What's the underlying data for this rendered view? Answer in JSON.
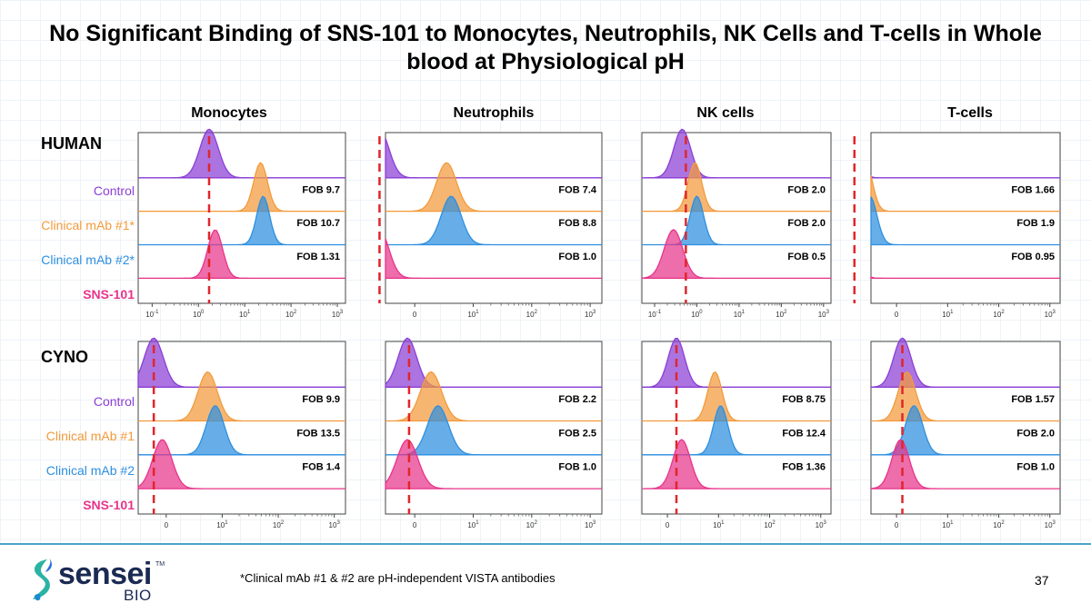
{
  "title": "No Significant Binding of SNS-101 to Monocytes, Neutrophils, NK Cells and T-cells in Whole blood at Physiological pH",
  "colors": {
    "control": "#8a3fd6",
    "clinical1": "#f39a3b",
    "clinical2": "#2d8fe0",
    "sns": "#e8348a",
    "dashed_line": "#e0262b",
    "footer_rule": "#4aa3c8",
    "brand_navy": "#1b2a52"
  },
  "column_headers": [
    "Monocytes",
    "Neutrophils",
    "NK cells",
    "T-cells"
  ],
  "species": {
    "human": "HUMAN",
    "cyno": "CYNO"
  },
  "row_labels": {
    "human": [
      "Control",
      "Clinical mAb #1*",
      "Clinical mAb #2*",
      "SNS-101"
    ],
    "cyno": [
      "Control",
      "Clinical mAb #1",
      "Clinical mAb #2",
      "SNS-101"
    ]
  },
  "footnote": "*Clinical mAb #1 & #2 are pH-independent VISTA antibodies",
  "page_number": "37",
  "logo": {
    "name": "sensei",
    "tm": "TM",
    "sub": "BIO"
  },
  "chart_data": [
    {
      "type": "area",
      "panel": "HUMAN Monocytes",
      "x_scale": "log",
      "xlim": [
        0.05,
        1500
      ],
      "x_ticks": [
        {
          "base": "10",
          "exp": "-1",
          "value": 0.1
        },
        {
          "base": "10",
          "exp": "0",
          "value": 1
        },
        {
          "base": "10",
          "exp": "1",
          "value": 10
        },
        {
          "base": "10",
          "exp": "2",
          "value": 100
        },
        {
          "base": "10",
          "exp": "3",
          "value": 1000
        }
      ],
      "reference_line_x": 1.7,
      "series": [
        {
          "name": "Control",
          "peak": 1.7,
          "spread": 0.2
        },
        {
          "name": "Clinical mAb #1*",
          "peak": 22,
          "spread": 0.15,
          "fob": "FOB 9.7"
        },
        {
          "name": "Clinical mAb #2*",
          "peak": 25,
          "spread": 0.14,
          "fob": "FOB 10.7"
        },
        {
          "name": "SNS-101",
          "peak": 2.3,
          "spread": 0.16,
          "fob": "FOB 1.31"
        }
      ]
    },
    {
      "type": "area",
      "panel": "HUMAN Neutrophils",
      "x_scale": "biexponential",
      "xlim": [
        -0.5,
        3.2
      ],
      "x_ticks": [
        {
          "base": "0",
          "exp": "",
          "value": 0
        },
        {
          "base": "10",
          "exp": "1",
          "value": 10
        },
        {
          "base": "10",
          "exp": "2",
          "value": 100
        },
        {
          "base": "10",
          "exp": "3",
          "value": 1000
        }
      ],
      "reference_line_x": 0.25,
      "series": [
        {
          "name": "Control",
          "peak": 0.25,
          "spread": 0.16
        },
        {
          "name": "Clinical mAb #1*",
          "peak": 3.5,
          "spread": 0.17,
          "fob": "FOB 7.4"
        },
        {
          "name": "Clinical mAb #2*",
          "peak": 4.2,
          "spread": 0.17,
          "fob": "FOB 8.8"
        },
        {
          "name": "SNS-101",
          "peak": 0.25,
          "spread": 0.16,
          "fob": "FOB 1.0"
        }
      ]
    },
    {
      "type": "area",
      "panel": "HUMAN NK cells",
      "x_scale": "log",
      "xlim": [
        0.05,
        1500
      ],
      "x_ticks": [
        {
          "base": "10",
          "exp": "-1",
          "value": 0.1
        },
        {
          "base": "10",
          "exp": "0",
          "value": 1
        },
        {
          "base": "10",
          "exp": "1",
          "value": 10
        },
        {
          "base": "10",
          "exp": "2",
          "value": 100
        },
        {
          "base": "10",
          "exp": "3",
          "value": 1000
        }
      ],
      "reference_line_x": 0.55,
      "series": [
        {
          "name": "Control",
          "peak": 0.45,
          "spread": 0.2
        },
        {
          "name": "Clinical mAb #1*",
          "peak": 0.9,
          "spread": 0.16,
          "fob": "FOB 2.0"
        },
        {
          "name": "Clinical mAb #2*",
          "peak": 1.0,
          "spread": 0.16,
          "fob": "FOB 2.0"
        },
        {
          "name": "SNS-101",
          "peak": 0.28,
          "spread": 0.22,
          "fob": "FOB 0.5"
        }
      ]
    },
    {
      "type": "area",
      "panel": "HUMAN T-cells",
      "x_scale": "biexponential",
      "xlim": [
        -0.5,
        3.2
      ],
      "x_ticks": [
        {
          "base": "0",
          "exp": "",
          "value": 0
        },
        {
          "base": "10",
          "exp": "1",
          "value": 10
        },
        {
          "base": "10",
          "exp": "2",
          "value": 100
        },
        {
          "base": "10",
          "exp": "3",
          "value": 1000
        }
      ],
      "reference_line_x": 0.15,
      "series": [
        {
          "name": "Control",
          "peak": 0.15,
          "spread": 0.12
        },
        {
          "name": "Clinical mAb #1*",
          "peak": 0.25,
          "spread": 0.13,
          "fob": "FOB 1.66"
        },
        {
          "name": "Clinical mAb #2*",
          "peak": 0.3,
          "spread": 0.14,
          "fob": "FOB 1.9"
        },
        {
          "name": "SNS-101",
          "peak": 0.15,
          "spread": 0.12,
          "fob": "FOB 0.95"
        }
      ]
    },
    {
      "type": "area",
      "panel": "CYNO Monocytes",
      "x_scale": "biexponential",
      "xlim": [
        -0.5,
        3.2
      ],
      "x_ticks": [
        {
          "base": "0",
          "exp": "",
          "value": 0
        },
        {
          "base": "10",
          "exp": "1",
          "value": 10
        },
        {
          "base": "10",
          "exp": "2",
          "value": 100
        },
        {
          "base": "10",
          "exp": "3",
          "value": 1000
        }
      ],
      "reference_line_x": 0.6,
      "series": [
        {
          "name": "Control",
          "peak": 0.6,
          "spread": 0.17
        },
        {
          "name": "Clinical mAb #1",
          "peak": 5.5,
          "spread": 0.17,
          "fob": "FOB 9.9"
        },
        {
          "name": "Clinical mAb #2",
          "peak": 7.5,
          "spread": 0.16,
          "fob": "FOB 13.5"
        },
        {
          "name": "SNS-101",
          "peak": 0.85,
          "spread": 0.17,
          "fob": "FOB 1.4"
        }
      ]
    },
    {
      "type": "area",
      "panel": "CYNO Neutrophils",
      "x_scale": "biexponential",
      "xlim": [
        -0.5,
        3.2
      ],
      "x_ticks": [
        {
          "base": "0",
          "exp": "",
          "value": 0
        },
        {
          "base": "10",
          "exp": "1",
          "value": 10
        },
        {
          "base": "10",
          "exp": "2",
          "value": 100
        },
        {
          "base": "10",
          "exp": "3",
          "value": 1000
        }
      ],
      "reference_line_x": 0.8,
      "series": [
        {
          "name": "Control",
          "peak": 0.75,
          "spread": 0.16
        },
        {
          "name": "Clinical mAb #1",
          "peak": 1.9,
          "spread": 0.18,
          "fob": "FOB 2.2"
        },
        {
          "name": "Clinical mAb #2",
          "peak": 2.5,
          "spread": 0.18,
          "fob": "FOB 2.5"
        },
        {
          "name": "SNS-101",
          "peak": 0.75,
          "spread": 0.18,
          "fob": "FOB 1.0"
        }
      ]
    },
    {
      "type": "area",
      "panel": "CYNO NK cells",
      "x_scale": "biexponential",
      "xlim": [
        -0.5,
        3.2
      ],
      "x_ticks": [
        {
          "base": "0",
          "exp": "",
          "value": 0
        },
        {
          "base": "10",
          "exp": "1",
          "value": 10
        },
        {
          "base": "10",
          "exp": "2",
          "value": 100
        },
        {
          "base": "10",
          "exp": "3",
          "value": 1000
        }
      ],
      "reference_line_x": 1.5,
      "series": [
        {
          "name": "Control",
          "peak": 1.5,
          "spread": 0.16
        },
        {
          "name": "Clinical mAb #1",
          "peak": 8.5,
          "spread": 0.14,
          "fob": "FOB 8.75"
        },
        {
          "name": "Clinical mAb #2",
          "peak": 11,
          "spread": 0.14,
          "fob": "FOB 12.4"
        },
        {
          "name": "SNS-101",
          "peak": 1.9,
          "spread": 0.17,
          "fob": "FOB 1.36"
        }
      ]
    },
    {
      "type": "area",
      "panel": "CYNO T-cells",
      "x_scale": "biexponential",
      "xlim": [
        -0.5,
        3.2
      ],
      "x_ticks": [
        {
          "base": "0",
          "exp": "",
          "value": 0
        },
        {
          "base": "10",
          "exp": "1",
          "value": 10
        },
        {
          "base": "10",
          "exp": "2",
          "value": 100
        },
        {
          "base": "10",
          "exp": "3",
          "value": 1000
        }
      ],
      "reference_line_x": 1.3,
      "series": [
        {
          "name": "Control",
          "peak": 1.3,
          "spread": 0.17
        },
        {
          "name": "Clinical mAb #1",
          "peak": 1.6,
          "spread": 0.17,
          "fob": "FOB 1.57"
        },
        {
          "name": "Clinical mAb #2",
          "peak": 2.2,
          "spread": 0.17,
          "fob": "FOB 2.0"
        },
        {
          "name": "SNS-101",
          "peak": 1.2,
          "spread": 0.17,
          "fob": "FOB 1.0"
        }
      ]
    }
  ]
}
